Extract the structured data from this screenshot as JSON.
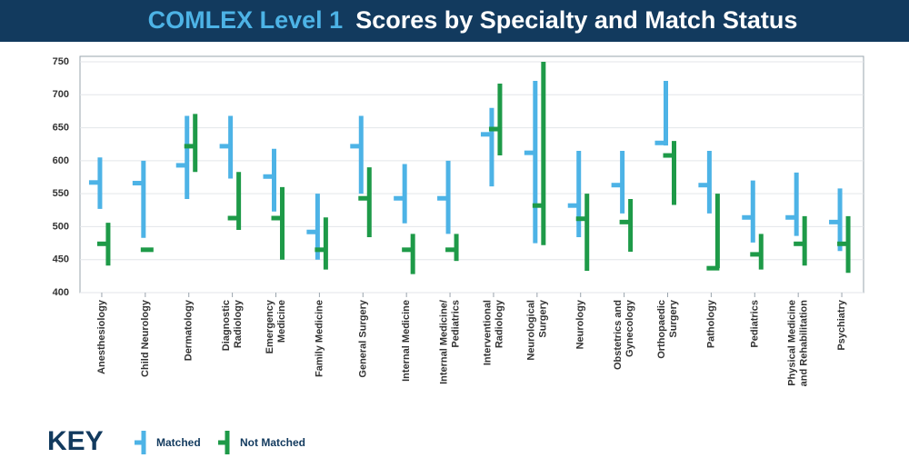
{
  "chart_data": {
    "type": "range",
    "title": [
      "COMLEX Level 1",
      "Scores by Specialty and Match Status"
    ],
    "legend_title": "KEY",
    "categories": [
      "Anesthesiology",
      "Child Neurology",
      "Dermatology",
      "Diagnostic\nRadiology",
      "Emergency\nMedicine",
      "Family Medicine",
      "General Surgery",
      "Internal Medicine",
      "Internal Medicine/\nPediatrics",
      "Interventional\nRadiology",
      "Neurological\nSurgery",
      "Neurology",
      "Obstetrics and\nGynecology",
      "Orthopaedic\nSurgery",
      "Pathology",
      "Pediatrics",
      "Physical Medicine\nand Rehabilitation",
      "Psychiatry"
    ],
    "series": [
      {
        "name": "Matched",
        "color": "#4db3e6",
        "max": [
          605,
          600,
          668,
          668,
          618,
          550,
          668,
          595,
          600,
          680,
          721,
          615,
          615,
          721,
          615,
          570,
          582,
          558
        ],
        "min": [
          527,
          483,
          542,
          573,
          523,
          450,
          550,
          505,
          489,
          561,
          475,
          484,
          520,
          623,
          520,
          476,
          486,
          463
        ],
        "mean": [
          567,
          566,
          593,
          622,
          576,
          492,
          622,
          543,
          543,
          640,
          612,
          532,
          563,
          627,
          563,
          514,
          514,
          507
        ]
      },
      {
        "name": "Not Matched",
        "color": "#1e9a48",
        "max": [
          506,
          465,
          671,
          583,
          560,
          514,
          590,
          489,
          489,
          717,
          750,
          550,
          542,
          630,
          550,
          489,
          516,
          516
        ],
        "min": [
          441,
          465,
          583,
          495,
          450,
          435,
          484,
          428,
          448,
          608,
          472,
          433,
          462,
          533,
          437,
          435,
          441,
          430
        ],
        "mean": [
          474,
          465,
          622,
          513,
          513,
          465,
          543,
          465,
          465,
          648,
          532,
          512,
          507,
          608,
          437,
          458,
          474,
          474
        ]
      }
    ],
    "ylim": [
      400,
      750
    ],
    "yticks": [
      400,
      450,
      500,
      550,
      600,
      650,
      700,
      750
    ],
    "grid": true
  }
}
